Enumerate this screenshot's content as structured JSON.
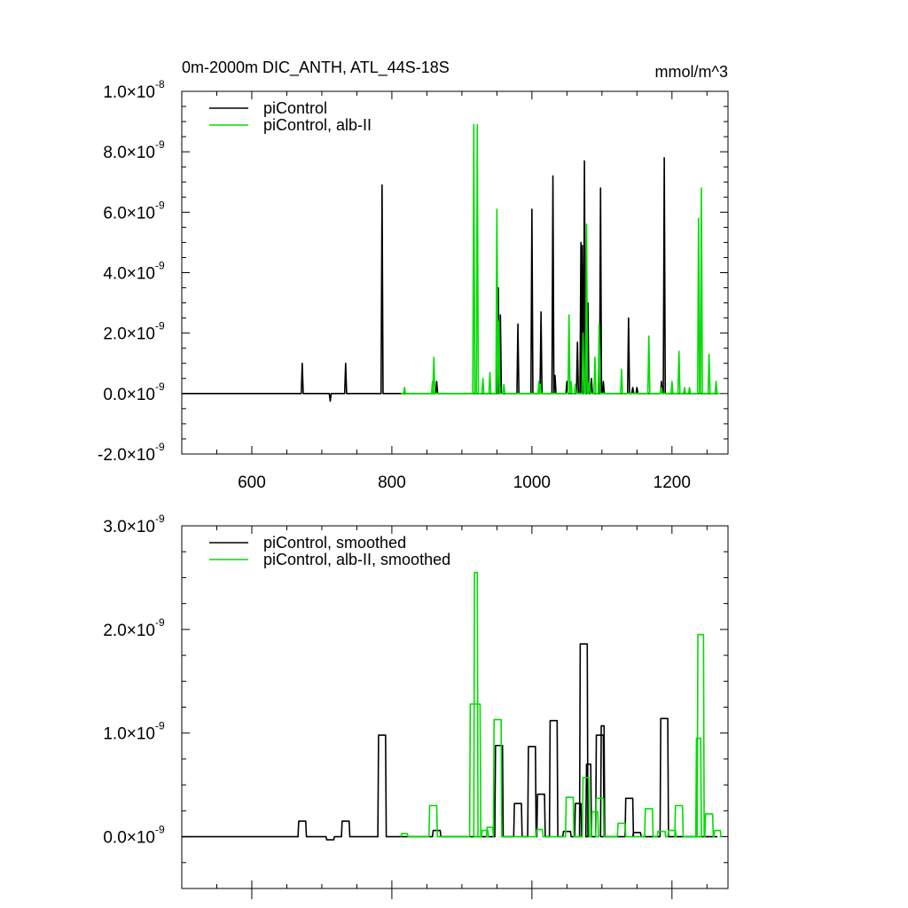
{
  "chart_data": [
    {
      "type": "line",
      "title": "0m-2000m DIC_ANTH, ATL_44S-18S",
      "units": "mmol/m^3",
      "xlim": [
        500,
        1280
      ],
      "ylim": [
        -2e-09,
        1e-08
      ],
      "xticks": [
        600,
        800,
        1000,
        1200
      ],
      "xtick_labels": [
        "600",
        "800",
        "1000",
        "1200"
      ],
      "yticks": [
        -2e-09,
        0,
        2e-09,
        4e-09,
        6e-09,
        8e-09,
        1e-08
      ],
      "ytick_labels": [
        {
          "mant": "-2.0",
          "exp": "-9"
        },
        {
          "mant": "0.0",
          "exp": "-9"
        },
        {
          "mant": "2.0",
          "exp": "-9"
        },
        {
          "mant": "4.0",
          "exp": "-9"
        },
        {
          "mant": "6.0",
          "exp": "-9"
        },
        {
          "mant": "8.0",
          "exp": "-9"
        },
        {
          "mant": "1.0",
          "exp": "-8"
        }
      ],
      "grid": false,
      "legend_position": "top-left",
      "series": [
        {
          "name": "piControl",
          "color": "#000000",
          "x_start": 500,
          "x_end": 1265,
          "spikes": [
            [
              672,
              1e-09
            ],
            [
              712,
              -2.5e-10
            ],
            [
              734,
              1e-09
            ],
            [
              786,
              6.9e-09
            ],
            [
              864,
              4e-10
            ],
            [
              952,
              3.5e-09
            ],
            [
              955,
              2.6e-09
            ],
            [
              980,
              2.3e-09
            ],
            [
              1000,
              6.1e-09
            ],
            [
              1013,
              2.7e-09
            ],
            [
              1030,
              7.2e-09
            ],
            [
              1033,
              6e-10
            ],
            [
              1050,
              4e-10
            ],
            [
              1065,
              1.7e-09
            ],
            [
              1070,
              5e-09
            ],
            [
              1072,
              4.9e-09
            ],
            [
              1075,
              7.7e-09
            ],
            [
              1080,
              3e-09
            ],
            [
              1085,
              5e-10
            ],
            [
              1098,
              6.8e-09
            ],
            [
              1102,
              4e-10
            ],
            [
              1138,
              2.5e-09
            ],
            [
              1144,
              2e-10
            ],
            [
              1150,
              2e-10
            ],
            [
              1185,
              4e-10
            ],
            [
              1189,
              7.8e-09
            ]
          ]
        },
        {
          "name": "piControl, alb-II",
          "color": "#00dd00",
          "x_start": 813,
          "x_end": 1268,
          "spikes": [
            [
              818,
              2e-10
            ],
            [
              858,
              4e-10
            ],
            [
              860,
              1.2e-09
            ],
            [
              917,
              8.9e-09
            ],
            [
              922,
              8.9e-09
            ],
            [
              930,
              5e-10
            ],
            [
              940,
              7e-10
            ],
            [
              950,
              6.1e-09
            ],
            [
              953,
              2.4e-09
            ],
            [
              960,
              3e-10
            ],
            [
              1010,
              4e-10
            ],
            [
              1012,
              3e-10
            ],
            [
              1053,
              2.6e-09
            ],
            [
              1056,
              4e-10
            ],
            [
              1062,
              3e-10
            ],
            [
              1073,
              2e-09
            ],
            [
              1078,
              5.6e-09
            ],
            [
              1082,
              4e-10
            ],
            [
              1090,
              1.2e-09
            ],
            [
              1096,
              2.3e-09
            ],
            [
              1128,
              8e-10
            ],
            [
              1167,
              1.9e-09
            ],
            [
              1185,
              2e-10
            ],
            [
              1200,
              4e-10
            ],
            [
              1210,
              1.4e-09
            ],
            [
              1218,
              2e-10
            ],
            [
              1225,
              2e-10
            ],
            [
              1238,
              5.8e-09
            ],
            [
              1242,
              6.8e-09
            ],
            [
              1253,
              1.3e-09
            ],
            [
              1263,
              4e-10
            ]
          ]
        }
      ]
    },
    {
      "type": "line",
      "xlim": [
        500,
        1280
      ],
      "ylim": [
        -5e-10,
        3e-09
      ],
      "xticks": [
        600,
        800,
        1000,
        1200
      ],
      "yticks": [
        0,
        1e-09,
        2e-09,
        3e-09
      ],
      "ytick_labels": [
        {
          "mant": "0.0",
          "exp": "-9"
        },
        {
          "mant": "1.0",
          "exp": "-9"
        },
        {
          "mant": "2.0",
          "exp": "-9"
        },
        {
          "mant": "3.0",
          "exp": "-9"
        }
      ],
      "grid": false,
      "legend_position": "top-left",
      "series": [
        {
          "name": "piControl, smoothed",
          "color": "#000000",
          "x_start": 500,
          "x_end": 1265,
          "bumps": [
            [
              672,
              1.5e-10,
              10
            ],
            [
              712,
              -3e-11,
              10
            ],
            [
              734,
              1.5e-10,
              10
            ],
            [
              786,
              9.8e-10,
              10
            ],
            [
              864,
              6e-11,
              10
            ],
            [
              953,
              8.8e-10,
              10
            ],
            [
              980,
              3.2e-10,
              10
            ],
            [
              1000,
              8.7e-10,
              10
            ],
            [
              1013,
              4.1e-10,
              10
            ],
            [
              1031,
              1.12e-09,
              10
            ],
            [
              1050,
              5e-11,
              10
            ],
            [
              1066,
              3.2e-10,
              8
            ],
            [
              1074,
              1.86e-09,
              10
            ],
            [
              1081,
              7e-10,
              6
            ],
            [
              1097,
              9.8e-10,
              10
            ],
            [
              1101,
              1.07e-09,
              4
            ],
            [
              1139,
              3.7e-10,
              10
            ],
            [
              1150,
              4e-11,
              10
            ],
            [
              1189,
              1.14e-09,
              10
            ]
          ]
        },
        {
          "name": "piControl, alb-II, smoothed",
          "color": "#00dd00",
          "x_start": 813,
          "x_end": 1268,
          "bumps": [
            [
              818,
              3e-11,
              8
            ],
            [
              859,
              3e-10,
              10
            ],
            [
              919,
              1.28e-09,
              14
            ],
            [
              920,
              2.55e-09,
              4
            ],
            [
              933,
              6e-11,
              8
            ],
            [
              940,
              9e-11,
              8
            ],
            [
              951,
              1.13e-09,
              10
            ],
            [
              1011,
              7e-11,
              8
            ],
            [
              1054,
              3.8e-10,
              10
            ],
            [
              1077,
              5.7e-10,
              8
            ],
            [
              1090,
              2.4e-10,
              8
            ],
            [
              1097,
              3.7e-10,
              10
            ],
            [
              1128,
              1.3e-10,
              10
            ],
            [
              1167,
              2.7e-10,
              10
            ],
            [
              1185,
              5e-11,
              10
            ],
            [
              1200,
              6e-11,
              10
            ],
            [
              1210,
              3e-10,
              10
            ],
            [
              1238,
              9.5e-10,
              6
            ],
            [
              1241,
              1.95e-09,
              8
            ],
            [
              1253,
              2.2e-10,
              10
            ],
            [
              1265,
              6e-11,
              8
            ]
          ]
        }
      ]
    }
  ]
}
